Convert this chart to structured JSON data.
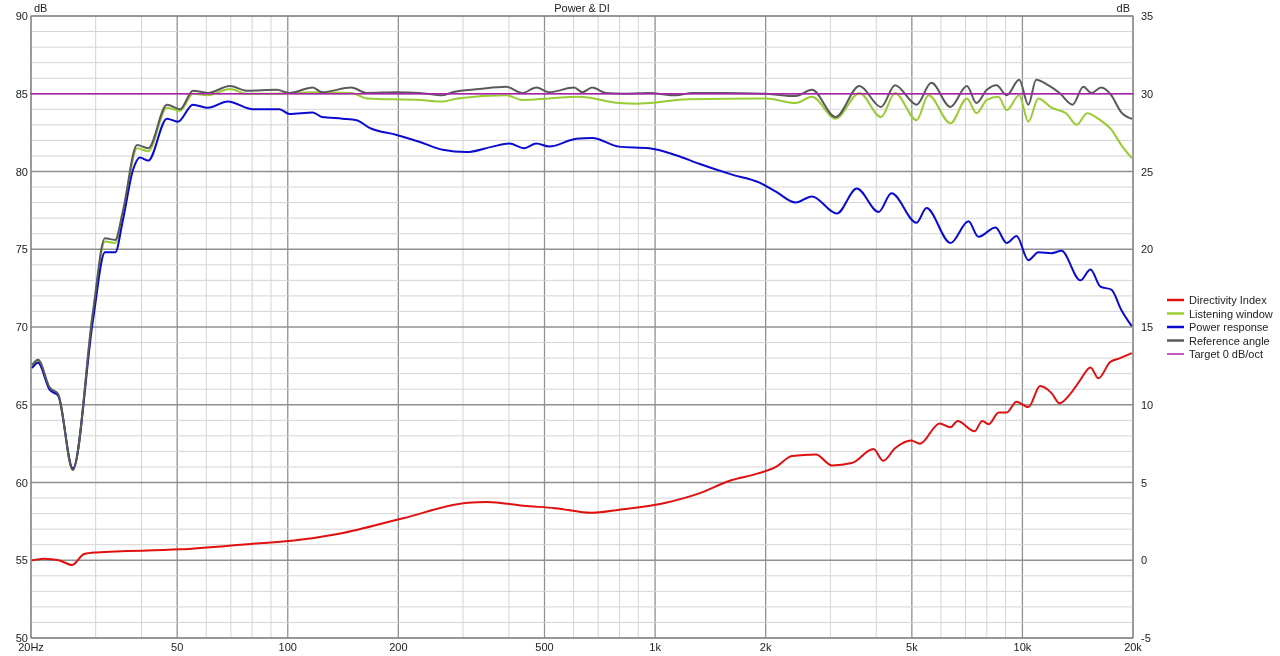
{
  "chart_data": {
    "type": "line",
    "title": "Power & DI",
    "ylabel": "dB",
    "y2label": "dB",
    "log": "x",
    "grid": true,
    "legend": "right",
    "line_style": "solid",
    "marker": "none",
    "xlim": [
      20,
      20000
    ],
    "ylim": [
      50,
      90
    ],
    "y2lim": [
      -5,
      35
    ],
    "xticks": [
      {
        "value": 20,
        "label": "20Hz"
      },
      {
        "value": 30,
        "label": null
      },
      {
        "value": 40,
        "label": null
      },
      50,
      {
        "value": 60,
        "label": null
      },
      {
        "value": 70,
        "label": null
      },
      {
        "value": 80,
        "label": null
      },
      {
        "value": 90,
        "label": null
      },
      100,
      200,
      {
        "value": 300,
        "label": null
      },
      {
        "value": 400,
        "label": null
      },
      500,
      {
        "value": 600,
        "label": null
      },
      {
        "value": 700,
        "label": null
      },
      {
        "value": 800,
        "label": null
      },
      {
        "value": 900,
        "label": null
      },
      {
        "value": 1000,
        "label": "1k"
      },
      {
        "value": 2000,
        "label": "2k"
      },
      {
        "value": 3000,
        "label": null
      },
      {
        "value": 4000,
        "label": null
      },
      {
        "value": 5000,
        "label": "5k"
      },
      {
        "value": 6000,
        "label": null
      },
      {
        "value": 7000,
        "label": null
      },
      {
        "value": 8000,
        "label": null
      },
      {
        "value": 9000,
        "label": null
      },
      {
        "value": 10000,
        "label": "10k"
      },
      {
        "value": 20000,
        "label": "20k"
      }
    ],
    "yticks": [
      50,
      {
        "value": 51,
        "label": null
      },
      {
        "value": 52,
        "label": null
      },
      {
        "value": 53,
        "label": null
      },
      {
        "value": 54,
        "label": null
      },
      55,
      {
        "value": 56,
        "label": null
      },
      {
        "value": 57,
        "label": null
      },
      {
        "value": 58,
        "label": null
      },
      {
        "value": 59,
        "label": null
      },
      60,
      {
        "value": 61,
        "label": null
      },
      {
        "value": 62,
        "label": null
      },
      {
        "value": 63,
        "label": null
      },
      {
        "value": 64,
        "label": null
      },
      65,
      {
        "value": 66,
        "label": null
      },
      {
        "value": 67,
        "label": null
      },
      {
        "value": 68,
        "label": null
      },
      {
        "value": 69,
        "label": null
      },
      70,
      {
        "value": 71,
        "label": null
      },
      {
        "value": 72,
        "label": null
      },
      {
        "value": 73,
        "label": null
      },
      {
        "value": 74,
        "label": null
      },
      75,
      {
        "value": 76,
        "label": null
      },
      {
        "value": 77,
        "label": null
      },
      {
        "value": 78,
        "label": null
      },
      {
        "value": 79,
        "label": null
      },
      80,
      {
        "value": 81,
        "label": null
      },
      {
        "value": 82,
        "label": null
      },
      {
        "value": 83,
        "label": null
      },
      {
        "value": 84,
        "label": null
      },
      85,
      {
        "value": 86,
        "label": null
      },
      {
        "value": 87,
        "label": null
      },
      {
        "value": 88,
        "label": null
      },
      {
        "value": 89,
        "label": null
      },
      90
    ],
    "y2ticks": [
      -5,
      0,
      5,
      10,
      15,
      20,
      25,
      30,
      35
    ],
    "series": [
      {
        "name": "Directivity Index",
        "color": "#e01010",
        "axis": "y2",
        "x": [
          20.2,
          21.7,
          23.8,
          25.9,
          27.9,
          30.1,
          50.8,
          83.9,
          102.6,
          138,
          206,
          309,
          349,
          438,
          535,
          672,
          800,
          1070,
          1318,
          1590,
          1918,
          2133,
          2360,
          2740,
          3030,
          3430,
          3930,
          4180,
          4500,
          4980,
          5260,
          5950,
          6370,
          6660,
          7410,
          7770,
          8100,
          8620,
          9060,
          9640,
          10380,
          11170,
          12000,
          12620,
          13600,
          14380,
          15320,
          16100,
          17330,
          18450,
          19780
        ],
        "values": [
          0,
          0.1,
          0,
          -0.3,
          0.4,
          0.5,
          0.7,
          1.1,
          1.25,
          1.7,
          2.7,
          3.7,
          3.75,
          3.5,
          3.35,
          3.05,
          3.25,
          3.7,
          4.3,
          5.1,
          5.6,
          6,
          6.7,
          6.8,
          6.1,
          6.25,
          7.15,
          6.4,
          7.2,
          7.7,
          7.5,
          8.8,
          8.55,
          8.95,
          8.3,
          8.95,
          8.75,
          9.5,
          9.5,
          10.2,
          9.85,
          11.2,
          10.75,
          10.1,
          10.8,
          11.6,
          12.4,
          11.7,
          12.75,
          13,
          13.3
        ]
      },
      {
        "name": "Listening window",
        "color": "#99cc33",
        "x": [
          20.2,
          20.9,
          22.5,
          23.7,
          26,
          29.5,
          31.8,
          33.9,
          35.6,
          38.9,
          41.7,
          46.9,
          50.9,
          55.2,
          60.6,
          69.6,
          77.3,
          93.4,
          101,
          117,
          149,
          164,
          229,
          264,
          290,
          393,
          435,
          515,
          620,
          798,
          895,
          964,
          1235,
          2000,
          2415,
          2673,
          3100,
          3600,
          4120,
          4500,
          5150,
          5550,
          6370,
          7060,
          7500,
          8000,
          8600,
          9060,
          9800,
          10380,
          11050,
          12000,
          13150,
          14050,
          15000,
          16300,
          17460,
          18590,
          19780
        ],
        "values": [
          67.5,
          67.8,
          66,
          65.6,
          60.8,
          70.9,
          75.5,
          75.4,
          77.3,
          81.5,
          81.3,
          84.1,
          83.9,
          85,
          84.9,
          85.3,
          85,
          85,
          85.05,
          85.1,
          85.05,
          84.7,
          84.6,
          84.5,
          84.7,
          84.9,
          84.6,
          84.7,
          84.8,
          84.4,
          84.35,
          84.4,
          84.65,
          84.7,
          84.4,
          84.8,
          83.4,
          85.05,
          83.5,
          85.05,
          83.3,
          84.9,
          83.1,
          84.7,
          83.75,
          84.6,
          84.8,
          83.95,
          84.9,
          83.2,
          84.7,
          84.1,
          83.75,
          83,
          83.75,
          83.3,
          82.7,
          81.7,
          80.9
        ]
      },
      {
        "name": "Power response",
        "color": "#0a0ad0",
        "x": [
          20.2,
          20.9,
          22.5,
          23.7,
          26,
          29.5,
          31.8,
          33.9,
          35.6,
          37.9,
          39.6,
          41.7,
          46.9,
          50.2,
          55.2,
          60.6,
          68.7,
          80.4,
          95,
          101,
          117,
          124,
          141,
          154,
          167,
          198,
          229,
          264,
          306,
          361,
          401,
          440,
          475,
          515,
          610,
          674,
          798,
          964,
          1140,
          1318,
          1620,
          1918,
          2133,
          2415,
          2673,
          3126,
          3540,
          4060,
          4400,
          5150,
          5480,
          6370,
          7130,
          7590,
          8450,
          9060,
          9640,
          10380,
          11050,
          12000,
          12770,
          14380,
          15320,
          16300,
          17460,
          18590,
          19780
        ],
        "values": [
          67.4,
          67.7,
          65.95,
          65.6,
          60.9,
          70.45,
          74.8,
          74.8,
          76.9,
          80.1,
          80.9,
          80.7,
          83.4,
          83.2,
          84.3,
          84.1,
          84.5,
          84,
          84,
          83.7,
          83.8,
          83.5,
          83.4,
          83.3,
          82.8,
          82.35,
          81.9,
          81.4,
          81.25,
          81.6,
          81.8,
          81.5,
          81.8,
          81.6,
          82.1,
          82.15,
          81.6,
          81.5,
          81.05,
          80.5,
          79.8,
          79.3,
          78.7,
          78,
          78.4,
          77.3,
          78.9,
          77.4,
          78.6,
          76.7,
          77.65,
          75.4,
          76.8,
          75.8,
          76.4,
          75.4,
          75.85,
          74.3,
          74.8,
          74.75,
          74.9,
          73,
          73.7,
          72.6,
          72.4,
          71.1,
          70.1
        ]
      },
      {
        "name": "Reference angle",
        "color": "#5a5a5a",
        "x": [
          20.2,
          20.9,
          22.5,
          23.7,
          26,
          29.5,
          31.8,
          33.9,
          35.6,
          38.9,
          41.7,
          46.9,
          50.9,
          55.2,
          60.6,
          69.6,
          77.3,
          93.4,
          101,
          117,
          124,
          149,
          164,
          198,
          229,
          264,
          281,
          332,
          393,
          435,
          475,
          515,
          602,
          634,
          674,
          735,
          832,
          964,
          1140,
          1260,
          1520,
          2000,
          2415,
          2673,
          3100,
          3600,
          4120,
          4500,
          5150,
          5650,
          6370,
          7060,
          7500,
          8000,
          8500,
          9060,
          9800,
          10380,
          10900,
          11750,
          12620,
          13700,
          14650,
          15400,
          16400,
          17460,
          18590,
          19780
        ],
        "values": [
          67.6,
          67.9,
          66.1,
          65.7,
          60.8,
          71,
          75.7,
          75.6,
          77.5,
          81.7,
          81.5,
          84.3,
          84,
          85.2,
          85.05,
          85.5,
          85.2,
          85.25,
          85.05,
          85.4,
          85.1,
          85.4,
          85.05,
          85.1,
          85.05,
          84.9,
          85.1,
          85.3,
          85.45,
          85.05,
          85.4,
          85.1,
          85.4,
          85.1,
          85.4,
          85.05,
          85,
          85.05,
          84.9,
          85.05,
          85.05,
          85,
          84.85,
          85.25,
          83.5,
          85.5,
          84.15,
          85.55,
          84.3,
          85.7,
          84.15,
          85.5,
          84.4,
          85.25,
          85.55,
          84.9,
          85.9,
          84.3,
          85.9,
          85.55,
          85.05,
          84.3,
          85.45,
          85.05,
          85.4,
          84.9,
          83.8,
          83.4
        ]
      },
      {
        "name": "Target 0 dB/oct",
        "color": "#b020b0",
        "x": [
          20,
          20000
        ],
        "values": [
          85,
          85
        ]
      }
    ]
  }
}
